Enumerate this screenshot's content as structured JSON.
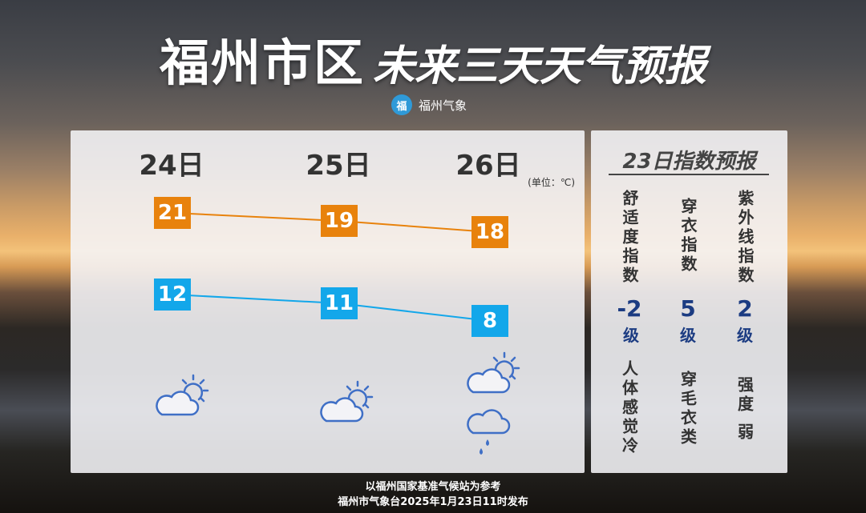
{
  "header": {
    "title_main": "福州市区",
    "title_sub": "未来三天天气预报",
    "brand_text": "福州气象",
    "brand_logo": "福"
  },
  "forecast": {
    "unit": "(单位：℃)",
    "days": [
      {
        "label": "24日",
        "high": 21,
        "low": 12,
        "icons": [
          "partly-cloudy-icon"
        ]
      },
      {
        "label": "25日",
        "high": 19,
        "low": 11,
        "icons": [
          "partly-cloudy-icon"
        ]
      },
      {
        "label": "26日",
        "high": 18,
        "low": 8,
        "icons": [
          "partly-cloudy-icon",
          "light-rain-icon"
        ]
      }
    ],
    "colors": {
      "high": "#e8820c",
      "low": "#13a7ea",
      "icon": "#3f6fc6"
    }
  },
  "index": {
    "title": "23日指数预报",
    "items": [
      {
        "name": "舒适度指数",
        "value": "-2",
        "level": "级",
        "desc": "人体感觉冷"
      },
      {
        "name": "穿衣指数",
        "value": "5",
        "level": "级",
        "desc": "穿毛衣类"
      },
      {
        "name": "紫外线指数",
        "value": "2",
        "level": "级",
        "desc": "强度 弱"
      }
    ]
  },
  "footer": {
    "line1": "以福州国家基准气候站为参考",
    "line2": "福州市气象台2025年1月23日11时发布"
  }
}
